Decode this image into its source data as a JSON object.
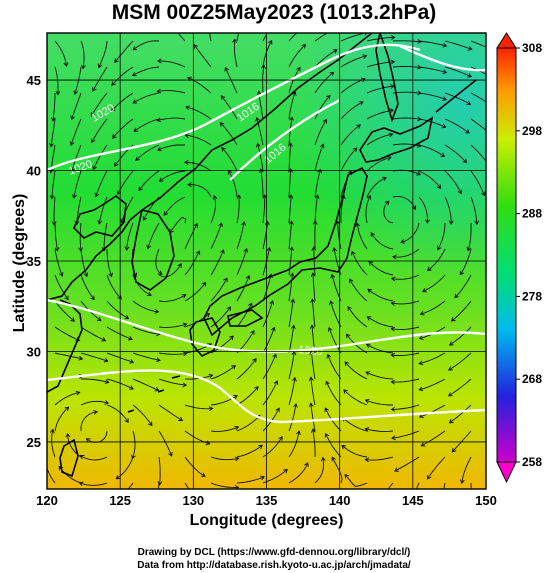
{
  "title": "MSM 00Z25May2023 (1013.2hPa)",
  "axes": {
    "xlabel": "Longitude (degrees)",
    "ylabel": "Latitude  (degrees)",
    "x_ticks": [
      "120",
      "125",
      "130",
      "135",
      "140",
      "145",
      "150"
    ],
    "y_ticks": [
      "25",
      "30",
      "35",
      "40",
      "45"
    ],
    "xlim": [
      120,
      150
    ],
    "ylim": [
      22.4,
      47.6
    ]
  },
  "colorbar": {
    "tick_labels": [
      "308",
      "298",
      "288",
      "278",
      "268",
      "258"
    ],
    "range": [
      258,
      308
    ],
    "colors": [
      "#cc00cc",
      "#2222dd",
      "#00bbee",
      "#00dd77",
      "#33dd11",
      "#ccee00",
      "#ff9900",
      "#ff2200"
    ]
  },
  "isobar_labels": [
    "1020",
    "1020",
    "1016",
    "1016",
    "1020"
  ],
  "credits": {
    "line1": "Drawing by DCL (https://www.gfd-dennou.org/library/dcl/)",
    "line2": "Data from http://database.rish.kyoto-u.ac.jp/arch/jmadata/"
  }
}
